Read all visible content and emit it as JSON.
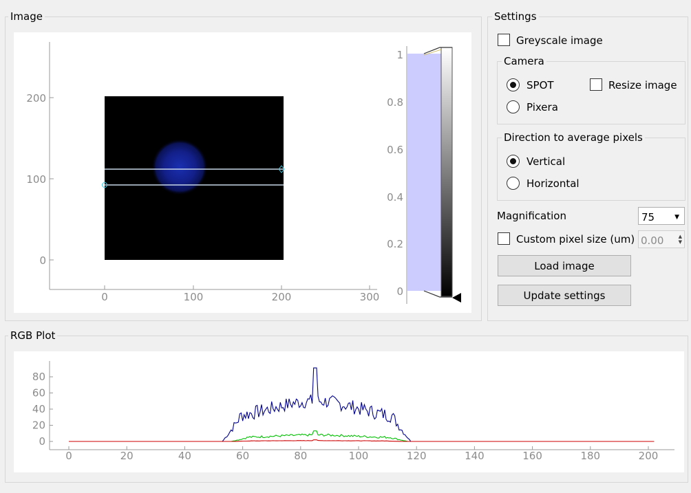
{
  "image_group": {
    "title": "Image",
    "x_ticks": [
      "0",
      "100",
      "200",
      "300"
    ],
    "y_ticks": [
      "200",
      "100",
      "0"
    ]
  },
  "histogram": {
    "ticks": [
      "1",
      "0.8",
      "0.6",
      "0.4",
      "0.2",
      "0"
    ],
    "region_color": "#ccccff"
  },
  "settings": {
    "title": "Settings",
    "greyscale_label": "Greyscale image",
    "greyscale_checked": false,
    "camera": {
      "title": "Camera",
      "options": [
        "SPOT",
        "Pixera"
      ],
      "selected": "SPOT",
      "resize_label": "Resize image",
      "resize_checked": false
    },
    "direction": {
      "title": "Direction to average pixels",
      "options": [
        "Vertical",
        "Horizontal"
      ],
      "selected": "Vertical"
    },
    "magnification_label": "Magnification",
    "magnification_value": "75",
    "custom_pixel_label": "Custom pixel size (um)",
    "custom_pixel_checked": false,
    "custom_pixel_value": "0.00",
    "load_button": "Load image",
    "update_button": "Update settings"
  },
  "rgb_plot": {
    "title": "RGB Plot"
  },
  "chart_data": {
    "type": "line",
    "x_ticks": [
      "0",
      "20",
      "40",
      "60",
      "80",
      "100",
      "120",
      "140",
      "160",
      "180",
      "200"
    ],
    "y_ticks": [
      "80",
      "60",
      "40",
      "20",
      "0"
    ],
    "xlim": [
      -5,
      210
    ],
    "ylim": [
      -3,
      99
    ],
    "x_range": [
      0,
      202
    ],
    "series": [
      {
        "color": "#00008b",
        "support": [
          53,
          118
        ],
        "peak_x": 85,
        "peak": 91,
        "level": 50
      },
      {
        "color": "#00c000",
        "support": [
          56,
          117
        ],
        "peak_x": 85,
        "peak": 13,
        "level": 8
      },
      {
        "color": "#cc0000",
        "support": [
          57,
          115
        ],
        "peak_x": 85,
        "peak": 2,
        "level": 1
      }
    ]
  }
}
